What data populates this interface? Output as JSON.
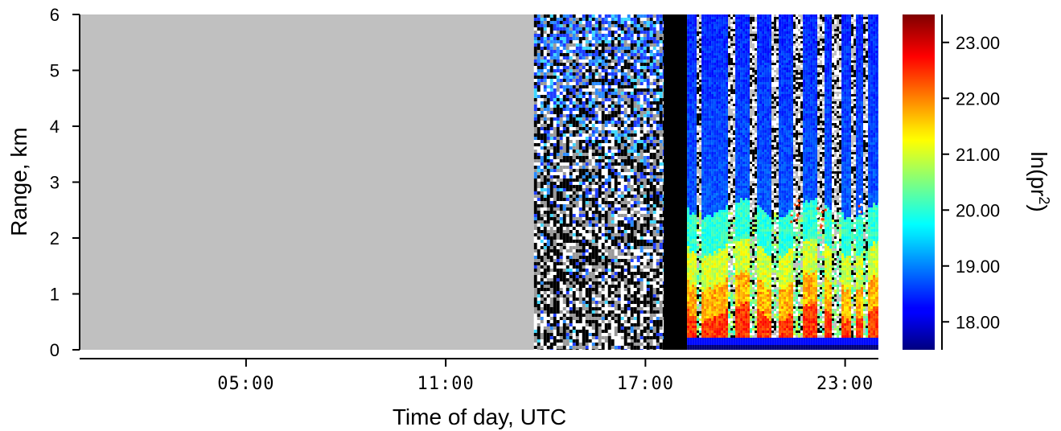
{
  "chart_data": {
    "type": "heatmap",
    "title": "",
    "xlabel": "Time of day, UTC",
    "ylabel": "Range, km",
    "colorbar_label": "ln(pr²)",
    "x_unit": "hours UTC",
    "xlim": [
      0,
      24
    ],
    "ylim": [
      0,
      6
    ],
    "x_ticks": [
      {
        "value": 5,
        "label": "05:00"
      },
      {
        "value": 11,
        "label": "11:00"
      },
      {
        "value": 17,
        "label": "17:00"
      },
      {
        "value": 23,
        "label": "23:00"
      }
    ],
    "y_ticks": [
      {
        "value": 0,
        "label": "0"
      },
      {
        "value": 1,
        "label": "1"
      },
      {
        "value": 2,
        "label": "2"
      },
      {
        "value": 3,
        "label": "3"
      },
      {
        "value": 4,
        "label": "4"
      },
      {
        "value": 5,
        "label": "5"
      },
      {
        "value": 6,
        "label": "6"
      }
    ],
    "colorbar": {
      "range": [
        17.5,
        23.5
      ],
      "colormap": "jet",
      "ticks": [
        {
          "value": 18,
          "label": "18.00"
        },
        {
          "value": 19,
          "label": "19.00"
        },
        {
          "value": 20,
          "label": "20.00"
        },
        {
          "value": 21,
          "label": "21.00"
        },
        {
          "value": 22,
          "label": "22.00"
        },
        {
          "value": 23,
          "label": "23.00"
        }
      ]
    },
    "regions": [
      {
        "name": "no data",
        "x_start": 0,
        "x_end": 13.65,
        "fill": "#c0c0c0"
      },
      {
        "name": "noise",
        "x_start": 13.65,
        "x_end": 17.55
      },
      {
        "name": "dark",
        "x_start": 17.55,
        "x_end": 18.25
      },
      {
        "name": "signal",
        "x_start": 18.25,
        "x_end": 24
      }
    ],
    "grid": false,
    "colors": {
      "no_data": "#c0c0c0",
      "dark": "#000000"
    }
  }
}
